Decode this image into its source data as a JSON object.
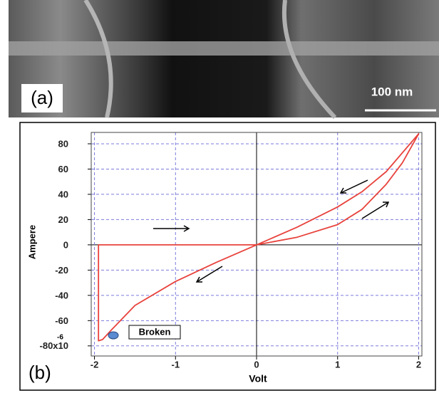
{
  "panel_a": {
    "label": "(a)",
    "scale_bar": "100 nm"
  },
  "chart_data": {
    "type": "line",
    "panel_label": "(b)",
    "x_label": "Volt",
    "y_label": "Ampere",
    "annotation": "Broken",
    "y_tick_exponent": "-6",
    "series": [
      {
        "color": "#e8423c",
        "x": [
          0,
          0.5,
          1.0,
          1.3,
          1.6,
          1.8,
          2.0,
          1.6,
          1.3,
          1.0,
          0.5,
          0,
          -0.5,
          -1.0,
          -1.5,
          -1.8,
          -1.9,
          -1.95,
          -1.95,
          0
        ],
        "values": [
          0,
          6,
          16,
          28,
          48,
          65,
          88,
          58,
          42,
          30,
          14,
          0,
          -14,
          -29,
          -48,
          -68,
          -75,
          -76,
          0,
          0
        ]
      }
    ],
    "xlim": [
      -2.04,
      2.04
    ],
    "xticks": [
      -2,
      -1,
      0,
      1,
      2
    ],
    "ylim": [
      -88,
      89
    ],
    "yticks": [
      {
        "value": -80,
        "label": "-80x10"
      },
      -60,
      -40,
      -20,
      0,
      20,
      40,
      60,
      80
    ],
    "grid": true
  }
}
